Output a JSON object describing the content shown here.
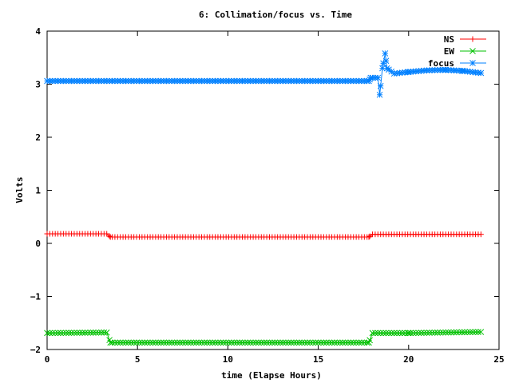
{
  "chart_data": {
    "type": "line",
    "title": "6: Collimation/focus vs. Time",
    "xlabel": "time (Elapse Hours)",
    "ylabel": "Volts",
    "xlim": [
      0,
      25
    ],
    "ylim": [
      -2,
      4
    ],
    "xticks": [
      0,
      5,
      10,
      15,
      20,
      25
    ],
    "yticks": [
      -2,
      -1,
      0,
      1,
      2,
      3,
      4
    ],
    "grid": false,
    "legend_position": "top-right",
    "series": [
      {
        "name": "NS",
        "color": "#ff0000",
        "marker": "plus",
        "points": [
          [
            0,
            0.18
          ],
          [
            3.3,
            0.18
          ],
          [
            3.5,
            0.12
          ],
          [
            17.8,
            0.12
          ],
          [
            18.0,
            0.17
          ],
          [
            24.0,
            0.17
          ]
        ]
      },
      {
        "name": "EW",
        "color": "#00c000",
        "marker": "cross",
        "points": [
          [
            0,
            -1.69
          ],
          [
            3.3,
            -1.68
          ],
          [
            3.5,
            -1.87
          ],
          [
            17.8,
            -1.87
          ],
          [
            18.0,
            -1.69
          ],
          [
            20.0,
            -1.69
          ],
          [
            24.0,
            -1.67
          ]
        ]
      },
      {
        "name": "focus",
        "color": "#0080ff",
        "marker": "star",
        "points": [
          [
            0,
            3.06
          ],
          [
            17.8,
            3.06
          ],
          [
            17.9,
            3.12
          ],
          [
            18.3,
            3.12
          ],
          [
            18.4,
            2.8
          ],
          [
            18.55,
            3.3
          ],
          [
            18.7,
            3.58
          ],
          [
            18.8,
            3.3
          ],
          [
            19.2,
            3.2
          ],
          [
            20.0,
            3.23
          ],
          [
            21.0,
            3.26
          ],
          [
            22.0,
            3.27
          ],
          [
            23.0,
            3.25
          ],
          [
            24.0,
            3.21
          ]
        ]
      }
    ]
  }
}
